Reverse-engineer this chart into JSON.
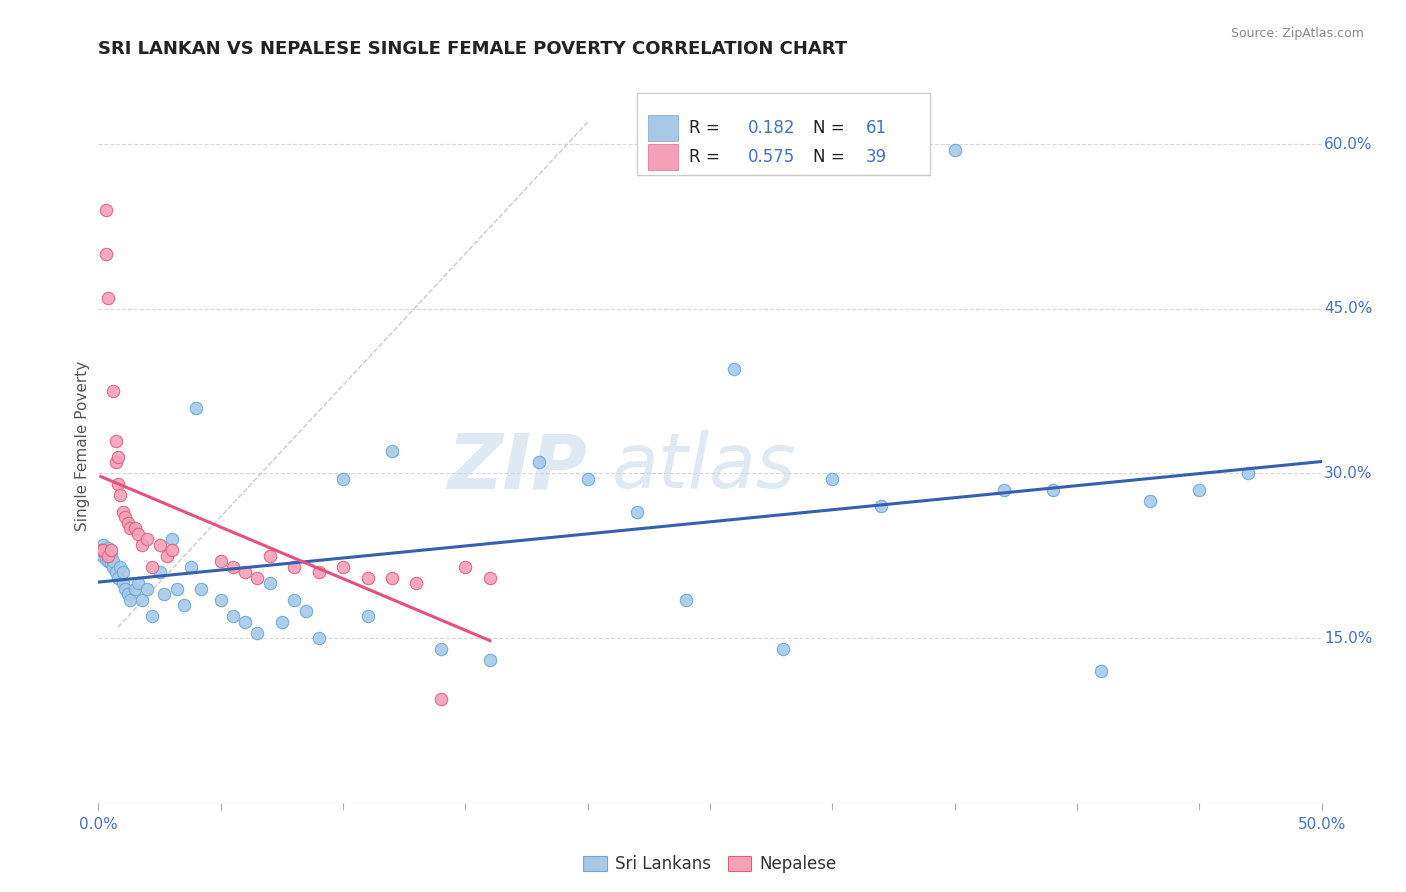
{
  "title": "SRI LANKAN VS NEPALESE SINGLE FEMALE POVERTY CORRELATION CHART",
  "source": "Source: ZipAtlas.com",
  "ylabel": "Single Female Poverty",
  "xlim": [
    0.0,
    0.5
  ],
  "ylim": [
    0.0,
    0.65
  ],
  "yticks": [
    0.15,
    0.3,
    0.45,
    0.6
  ],
  "yticklabels": [
    "15.0%",
    "30.0%",
    "45.0%",
    "60.0%"
  ],
  "sri_lankan_color": "#a8c8e8",
  "sri_lankan_edge": "#6aaad4",
  "nepalese_color": "#f4a0b8",
  "nepalese_edge": "#e06080",
  "sri_lankan_line_color": "#3560b0",
  "nepalese_line_color": "#e8507a",
  "ref_line_color": "#d0c8d0",
  "watermark": "ZIPatlas",
  "legend_R_sri": "0.182",
  "legend_N_sri": "61",
  "legend_R_nep": "0.575",
  "legend_N_nep": "39",
  "stat_color": "#4472c4",
  "background_color": "#ffffff",
  "grid_color": "#d8d8d8",
  "sri_lankans_x": [
    0.001,
    0.002,
    0.002,
    0.003,
    0.003,
    0.004,
    0.004,
    0.005,
    0.005,
    0.006,
    0.006,
    0.007,
    0.008,
    0.009,
    0.01,
    0.01,
    0.011,
    0.012,
    0.013,
    0.015,
    0.016,
    0.018,
    0.02,
    0.022,
    0.025,
    0.027,
    0.03,
    0.032,
    0.035,
    0.038,
    0.04,
    0.042,
    0.05,
    0.055,
    0.06,
    0.065,
    0.07,
    0.075,
    0.08,
    0.085,
    0.09,
    0.1,
    0.11,
    0.12,
    0.14,
    0.16,
    0.18,
    0.2,
    0.22,
    0.24,
    0.26,
    0.28,
    0.3,
    0.32,
    0.35,
    0.37,
    0.39,
    0.41,
    0.43,
    0.45,
    0.47
  ],
  "sri_lankans_y": [
    0.23,
    0.235,
    0.225,
    0.228,
    0.222,
    0.232,
    0.22,
    0.225,
    0.218,
    0.215,
    0.22,
    0.21,
    0.205,
    0.215,
    0.2,
    0.21,
    0.195,
    0.19,
    0.185,
    0.195,
    0.2,
    0.185,
    0.195,
    0.17,
    0.21,
    0.19,
    0.24,
    0.195,
    0.18,
    0.215,
    0.36,
    0.195,
    0.185,
    0.17,
    0.165,
    0.155,
    0.2,
    0.165,
    0.185,
    0.175,
    0.15,
    0.295,
    0.17,
    0.32,
    0.14,
    0.13,
    0.31,
    0.295,
    0.265,
    0.185,
    0.395,
    0.14,
    0.295,
    0.27,
    0.595,
    0.285,
    0.285,
    0.12,
    0.275,
    0.285,
    0.3
  ],
  "nepalese_x": [
    0.001,
    0.002,
    0.003,
    0.003,
    0.004,
    0.004,
    0.005,
    0.006,
    0.007,
    0.007,
    0.008,
    0.008,
    0.009,
    0.01,
    0.011,
    0.012,
    0.013,
    0.015,
    0.016,
    0.018,
    0.02,
    0.022,
    0.025,
    0.028,
    0.03,
    0.05,
    0.055,
    0.06,
    0.065,
    0.07,
    0.08,
    0.09,
    0.1,
    0.11,
    0.12,
    0.13,
    0.14,
    0.15,
    0.16
  ],
  "nepalese_y": [
    0.23,
    0.23,
    0.54,
    0.5,
    0.46,
    0.225,
    0.23,
    0.375,
    0.33,
    0.31,
    0.315,
    0.29,
    0.28,
    0.265,
    0.26,
    0.255,
    0.25,
    0.25,
    0.245,
    0.235,
    0.24,
    0.215,
    0.235,
    0.225,
    0.23,
    0.22,
    0.215,
    0.21,
    0.205,
    0.225,
    0.215,
    0.21,
    0.215,
    0.205,
    0.205,
    0.2,
    0.095,
    0.215,
    0.205
  ]
}
